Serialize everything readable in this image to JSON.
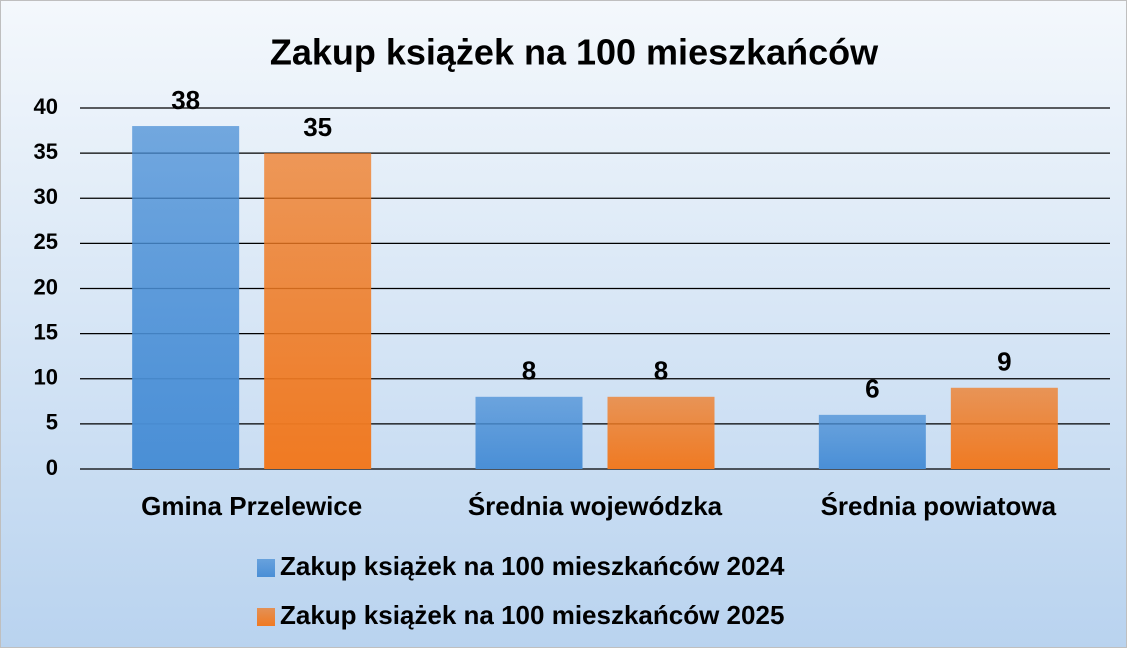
{
  "chart_data": {
    "type": "bar",
    "title": "Zakup książek na 100 mieszkańców",
    "categories": [
      "Gmina Przelewice",
      "Średnia wojewódzka",
      "Średnia powiatowa"
    ],
    "series": [
      {
        "name": "Zakup książek na 100 mieszkańców 2024",
        "color": "#4a8fd6",
        "values": [
          38,
          8,
          6
        ]
      },
      {
        "name": "Zakup książek na 100 mieszkańców 2025",
        "color": "#f07a22",
        "values": [
          35,
          8,
          9
        ]
      }
    ],
    "ylim": [
      0,
      40
    ],
    "yticks": [
      0,
      5,
      10,
      15,
      20,
      25,
      30,
      35,
      40
    ],
    "grid": true,
    "legend": "bottom"
  }
}
